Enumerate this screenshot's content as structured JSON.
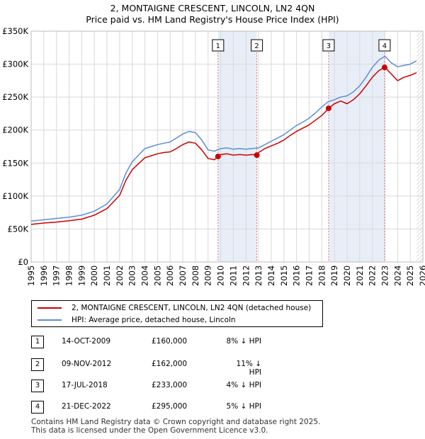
{
  "title_line1": "2, MONTAIGNE CRESCENT, LINCOLN, LN2 4QN",
  "title_line2": "Price paid vs. HM Land Registry's House Price Index (HPI)",
  "legend": {
    "property_label": "2, MONTAIGNE CRESCENT, LINCOLN, LN2 4QN (detached house)",
    "hpi_label": "HPI: Average price, detached house, Lincoln"
  },
  "sales": [
    {
      "num": "1",
      "date": "14-OCT-2009",
      "price": "£160,000",
      "hpi": "8% ↓ HPI"
    },
    {
      "num": "2",
      "date": "09-NOV-2012",
      "price": "£162,000",
      "hpi": "11% ↓ HPI"
    },
    {
      "num": "3",
      "date": "17-JUL-2018",
      "price": "£233,000",
      "hpi": "4% ↓ HPI"
    },
    {
      "num": "4",
      "date": "21-DEC-2022",
      "price": "£295,000",
      "hpi": "5% ↓ HPI"
    }
  ],
  "footer_line1": "Contains HM Land Registry data © Crown copyright and database right 2025.",
  "footer_line2": "This data is licensed under the Open Government Licence v3.0.",
  "colors": {
    "property": "#cc0000",
    "hpi": "#5b8fd4",
    "shade": "#e8eef8",
    "grid": "#d9d9d9",
    "marker_line": "#e07070"
  },
  "chart_data": {
    "type": "line",
    "title": "2, MONTAIGNE CRESCENT, LINCOLN, LN2 4QN — Price paid vs. HM Land Registry's House Price Index (HPI)",
    "xlabel": "",
    "ylabel": "",
    "xlim": [
      1995,
      2026
    ],
    "ylim": [
      0,
      350000
    ],
    "x_ticks": [
      1995,
      1996,
      1997,
      1998,
      1999,
      2000,
      2001,
      2002,
      2003,
      2004,
      2005,
      2006,
      2007,
      2008,
      2009,
      2010,
      2011,
      2012,
      2013,
      2014,
      2015,
      2016,
      2017,
      2018,
      2019,
      2020,
      2021,
      2022,
      2023,
      2024,
      2025,
      2026
    ],
    "y_ticks": [
      {
        "value": 0,
        "label": "£0"
      },
      {
        "value": 50000,
        "label": "£50K"
      },
      {
        "value": 100000,
        "label": "£100K"
      },
      {
        "value": 150000,
        "label": "£150K"
      },
      {
        "value": 200000,
        "label": "£200K"
      },
      {
        "value": 250000,
        "label": "£250K"
      },
      {
        "value": 300000,
        "label": "£300K"
      },
      {
        "value": 350000,
        "label": "£350K"
      }
    ],
    "grid": true,
    "shaded_spans": [
      [
        2009.79,
        2012.86
      ],
      [
        2018.54,
        2022.97
      ]
    ],
    "future_hatch_from": 2025.5,
    "series": [
      {
        "name": "HPI: Average price, detached house, Lincoln",
        "x": [
          1995,
          1996,
          1997,
          1998,
          1999,
          2000,
          2001,
          2002,
          2002.5,
          2003,
          2003.5,
          2004,
          2004.5,
          2005,
          2005.5,
          2006,
          2006.5,
          2007,
          2007.5,
          2008,
          2008.5,
          2009,
          2009.5,
          2010,
          2010.5,
          2011,
          2011.5,
          2012,
          2012.5,
          2013,
          2013.5,
          2014,
          2014.5,
          2015,
          2015.5,
          2016,
          2016.5,
          2017,
          2017.5,
          2018,
          2018.5,
          2019,
          2019.5,
          2020,
          2020.5,
          2021,
          2021.5,
          2022,
          2022.5,
          2023,
          2023.5,
          2024,
          2024.5,
          2025,
          2025.5
        ],
        "values": [
          62000,
          64000,
          66000,
          68000,
          71000,
          77000,
          88000,
          110000,
          135000,
          152000,
          162000,
          172000,
          175000,
          178000,
          180000,
          182000,
          188000,
          194000,
          198000,
          196000,
          185000,
          170000,
          168000,
          172000,
          173000,
          171000,
          172000,
          171000,
          172000,
          173000,
          178000,
          183000,
          188000,
          193000,
          200000,
          207000,
          212000,
          218000,
          226000,
          235000,
          243000,
          246000,
          250000,
          252000,
          258000,
          267000,
          280000,
          295000,
          306000,
          312000,
          302000,
          296000,
          298000,
          300000,
          305000
        ]
      },
      {
        "name": "2, MONTAIGNE CRESCENT, LINCOLN, LN2 4QN (detached house)",
        "x": [
          1995,
          1996,
          1997,
          1998,
          1999,
          2000,
          2001,
          2002,
          2002.5,
          2003,
          2003.5,
          2004,
          2004.5,
          2005,
          2005.5,
          2006,
          2006.5,
          2007,
          2007.5,
          2008,
          2008.5,
          2009,
          2009.5,
          2009.79,
          2010,
          2010.5,
          2011,
          2011.5,
          2012,
          2012.5,
          2012.86,
          2013,
          2013.5,
          2014,
          2014.5,
          2015,
          2015.5,
          2016,
          2016.5,
          2017,
          2017.5,
          2018,
          2018.54,
          2019,
          2019.5,
          2020,
          2020.5,
          2021,
          2021.5,
          2022,
          2022.5,
          2022.97,
          2023,
          2023.5,
          2024,
          2024.5,
          2025,
          2025.5
        ],
        "values": [
          57000,
          59000,
          60500,
          62500,
          65000,
          71000,
          81000,
          101000,
          124000,
          140000,
          149000,
          158000,
          161000,
          164000,
          166000,
          167000,
          172000,
          178000,
          182000,
          180000,
          170000,
          157000,
          155000,
          160000,
          163000,
          164000,
          162000,
          163000,
          162000,
          163000,
          162000,
          166000,
          172000,
          176000,
          180000,
          185000,
          192000,
          198000,
          203000,
          208000,
          215000,
          222000,
          233000,
          240000,
          244000,
          240000,
          246000,
          255000,
          267000,
          280000,
          290000,
          295000,
          295000,
          285000,
          275000,
          280000,
          283000,
          287000
        ]
      }
    ],
    "markers": [
      {
        "label": "1",
        "x": 2009.79,
        "value": 160000
      },
      {
        "label": "2",
        "x": 2012.86,
        "value": 162000
      },
      {
        "label": "3",
        "x": 2018.54,
        "value": 233000
      },
      {
        "label": "4",
        "x": 2022.97,
        "value": 295000
      }
    ]
  }
}
